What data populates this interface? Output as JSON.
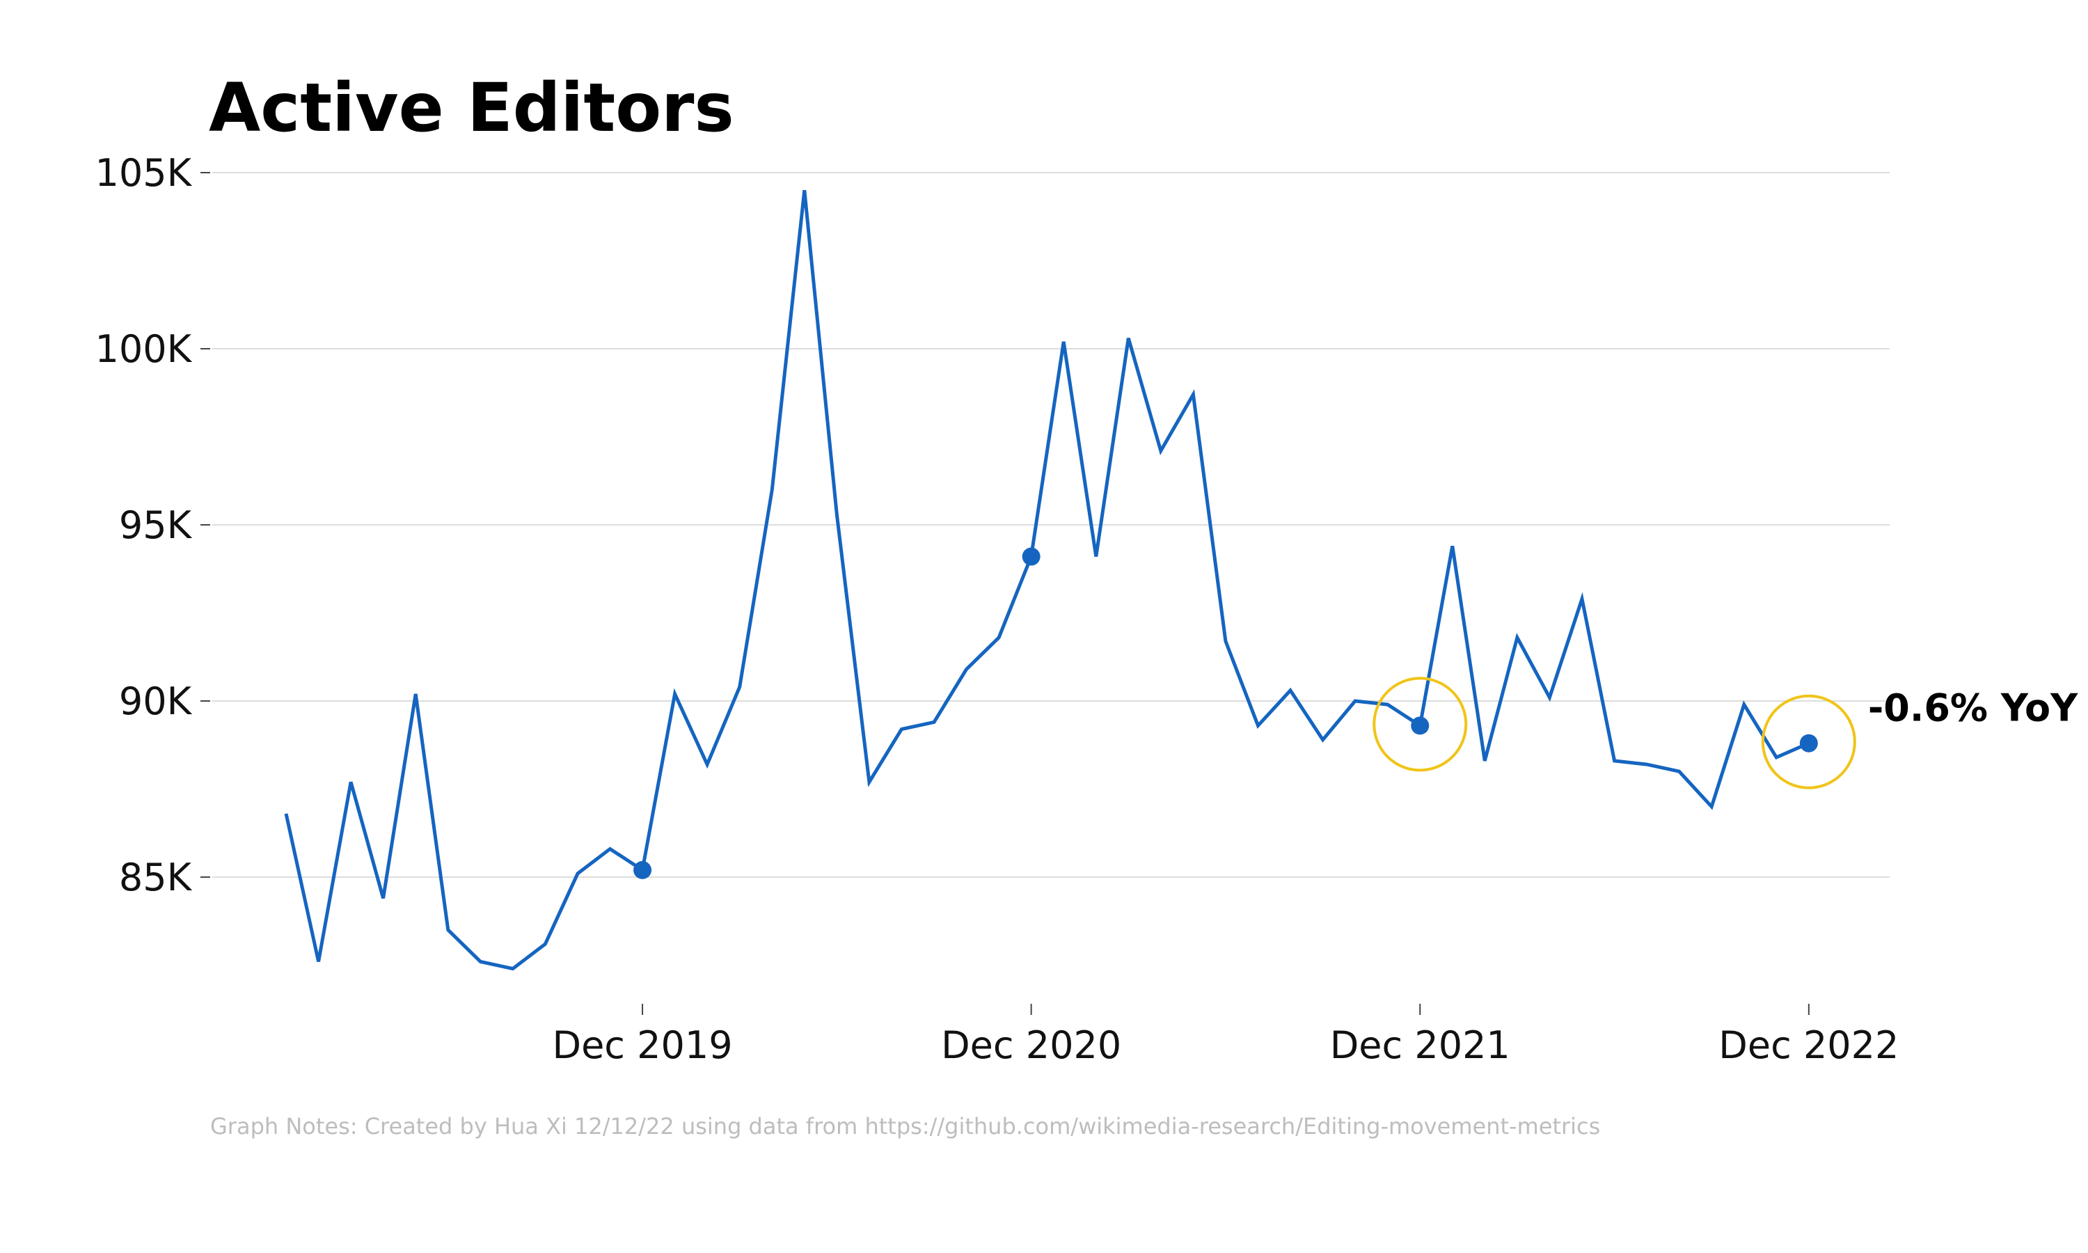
{
  "chart_data": {
    "type": "line",
    "title": "Active Editors",
    "xlabel": "",
    "ylabel": "",
    "ylim": [
      81500,
      105200
    ],
    "yticks": [
      85000,
      90000,
      95000,
      100000,
      105000
    ],
    "ytick_labels": [
      "85K",
      "90K",
      "95K",
      "100K",
      "105K"
    ],
    "xticks": [
      11,
      23,
      35,
      47
    ],
    "xtick_labels": [
      "Dec 2019",
      "Dec 2020",
      "Dec 2021",
      "Dec 2022"
    ],
    "grid": "horizontal",
    "series": [
      {
        "x": [
          0,
          1,
          2,
          3,
          4,
          5,
          6,
          7,
          8,
          9,
          10,
          11,
          12,
          13,
          14,
          15,
          16,
          17,
          18,
          19,
          20,
          21,
          22,
          23,
          24,
          25,
          26,
          27,
          28,
          29,
          30,
          31,
          32,
          33,
          34,
          35,
          36,
          37,
          38,
          39,
          40,
          41,
          42,
          43,
          44,
          45,
          46,
          47
        ],
        "values": [
          86800,
          82600,
          87700,
          84400,
          90200,
          83500,
          82600,
          82400,
          83100,
          85100,
          85800,
          85200,
          90200,
          88200,
          90400,
          96000,
          104500,
          95300,
          87700,
          89200,
          89400,
          90900,
          91800,
          94100,
          100200,
          94100,
          100300,
          97100,
          98700,
          91700,
          89300,
          90300,
          88900,
          90000,
          89900,
          89300,
          94400,
          88300,
          91800,
          90100,
          92900,
          88300,
          88200,
          88000,
          87000,
          89900,
          88400,
          88800
        ],
        "color": "#1565c0"
      }
    ],
    "highlighted_points": [
      11,
      23,
      35,
      47
    ],
    "circled_points": [
      35,
      47
    ],
    "annotations": [
      {
        "text": "-0.6% YoY",
        "at_index": 47
      }
    ],
    "circle_color": "#f0c419"
  },
  "footer": {
    "note": "Graph Notes: Created by Hua Xi 12/12/22 using data from https://github.com/wikimedia-research/Editing-movement-metrics"
  }
}
